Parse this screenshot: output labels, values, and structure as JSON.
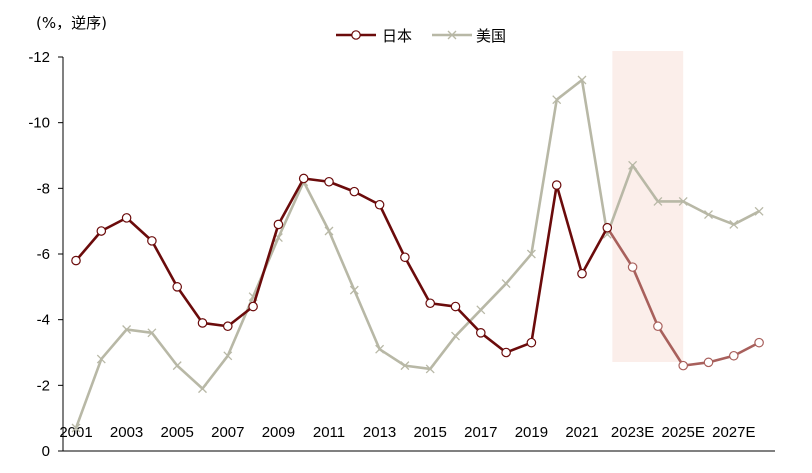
{
  "chart_data": {
    "type": "line",
    "unit_label": "(%，逆序)",
    "y_inverted": true,
    "ylim": [
      0,
      -12
    ],
    "y_ticks": [
      0,
      -2,
      -4,
      -6,
      -8,
      -10,
      -12
    ],
    "x_start": 2001,
    "x_end": 2028,
    "x_ticks": [
      {
        "year": 2001,
        "label": "2001"
      },
      {
        "year": 2003,
        "label": "2003"
      },
      {
        "year": 2005,
        "label": "2005"
      },
      {
        "year": 2007,
        "label": "2007"
      },
      {
        "year": 2009,
        "label": "2009"
      },
      {
        "year": 2011,
        "label": "2011"
      },
      {
        "year": 2013,
        "label": "2013"
      },
      {
        "year": 2015,
        "label": "2015"
      },
      {
        "year": 2017,
        "label": "2017"
      },
      {
        "year": 2019,
        "label": "2019"
      },
      {
        "year": 2021,
        "label": "2021"
      },
      {
        "year": 2023,
        "label": "2023E"
      },
      {
        "year": 2025,
        "label": "2025E"
      },
      {
        "year": 2027,
        "label": "2027E"
      }
    ],
    "forecast_band": {
      "from": 2022.2,
      "to": 2025.0,
      "color": "#fbeeea"
    },
    "legend_position": "top-center",
    "series": [
      {
        "name": "日本",
        "color": "#6b0b0b",
        "forecast_color": "#a8605c",
        "marker": "circle",
        "forecast_from": 2022,
        "x": [
          2001,
          2002,
          2003,
          2004,
          2005,
          2006,
          2007,
          2008,
          2009,
          2010,
          2011,
          2012,
          2013,
          2014,
          2015,
          2016,
          2017,
          2018,
          2019,
          2020,
          2021,
          2022,
          2023,
          2024,
          2025,
          2026,
          2027,
          2028
        ],
        "values": [
          -5.8,
          -6.7,
          -7.1,
          -6.4,
          -5.0,
          -3.9,
          -3.8,
          -4.4,
          -6.9,
          -8.3,
          -8.2,
          -7.9,
          -7.5,
          -5.9,
          -4.5,
          -4.4,
          -3.6,
          -3.0,
          -3.3,
          -8.1,
          -5.4,
          -6.8,
          -5.6,
          -3.8,
          -2.6,
          -2.7,
          -2.9,
          -3.3
        ]
      },
      {
        "name": "美国",
        "color": "#b8b8a6",
        "marker": "cross",
        "x": [
          2001,
          2002,
          2003,
          2004,
          2005,
          2006,
          2007,
          2008,
          2009,
          2010,
          2011,
          2012,
          2013,
          2014,
          2015,
          2016,
          2017,
          2018,
          2019,
          2020,
          2021,
          2022,
          2023,
          2024,
          2025,
          2026,
          2027,
          2028
        ],
        "values": [
          -0.7,
          -2.8,
          -3.7,
          -3.6,
          -2.6,
          -1.9,
          -2.9,
          -4.7,
          -6.5,
          -8.2,
          -6.7,
          -4.9,
          -3.1,
          -2.6,
          -2.5,
          -3.5,
          -4.3,
          -5.1,
          -6.0,
          -10.7,
          -11.3,
          -6.6,
          -8.7,
          -7.6,
          -7.6,
          -7.2,
          -6.9,
          -7.3
        ]
      }
    ]
  }
}
